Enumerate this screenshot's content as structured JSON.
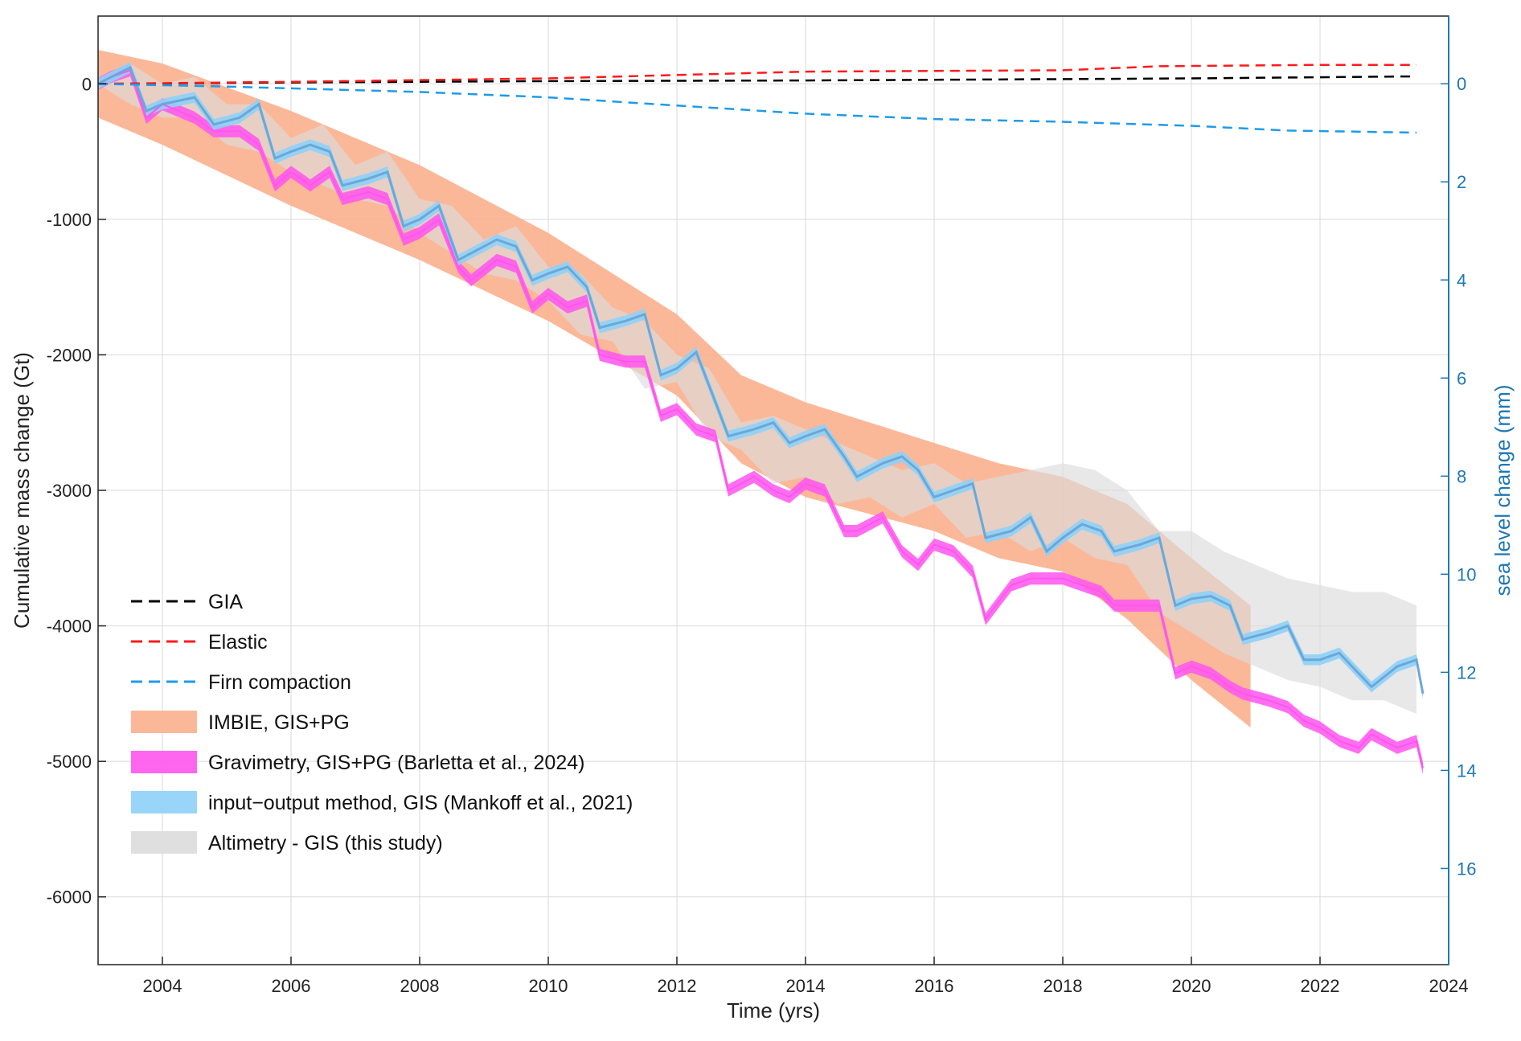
{
  "colors": {
    "gia": "#000000",
    "elastic": "#ff1a1a",
    "firn": "#1e9be8",
    "imbie": "#fbb08e",
    "gravimetry": "#ff55ee",
    "io_band": "#8ed0f8",
    "io_line": "#6aa8d8",
    "altimetry": "#dcdcdc",
    "right_axis": "#1f77b4"
  },
  "chart_data": {
    "type": "area",
    "title": "",
    "xlabel": "Time (yrs)",
    "ylabel": "Cumulative mass change (Gt)",
    "y2label": "sea level change (mm)",
    "xlim": [
      2003,
      2024
    ],
    "ylim": [
      -6500,
      500
    ],
    "y2lim": [
      -1.38,
      17.96
    ],
    "xticks": [
      2004,
      2006,
      2008,
      2010,
      2012,
      2014,
      2016,
      2018,
      2020,
      2022,
      2024
    ],
    "yticks": [
      0,
      -1000,
      -2000,
      -3000,
      -4000,
      -5000,
      -6000
    ],
    "y2ticks": [
      0,
      2,
      4,
      6,
      8,
      10,
      12,
      14,
      16
    ],
    "grid": true,
    "legend_position": "bottom-left",
    "legend": [
      {
        "label": "GIA",
        "style": "dashed",
        "color": "#000000"
      },
      {
        "label": "Elastic",
        "style": "dashed",
        "color": "#ff1a1a"
      },
      {
        "label": "Firn compaction",
        "style": "dashed",
        "color": "#1e9be8"
      },
      {
        "label": "IMBIE, GIS+PG",
        "style": "band",
        "color": "#fbb08e"
      },
      {
        "label": "Gravimetry, GIS+PG (Barletta et al., 2024)",
        "style": "band",
        "color": "#ff55ee"
      },
      {
        "label": "input−output method, GIS (Mankoff et al., 2021)",
        "style": "band",
        "color": "#8ed0f8"
      },
      {
        "label": "Altimetry - GIS (this study)",
        "style": "band",
        "color": "#dcdcdc"
      }
    ],
    "series": [
      {
        "name": "GIA",
        "kind": "line",
        "x": [
          2003,
          2006,
          2010,
          2014,
          2018,
          2020,
          2023.5
        ],
        "y": [
          0,
          10,
          20,
          25,
          35,
          40,
          55
        ]
      },
      {
        "name": "Elastic",
        "kind": "line",
        "x": [
          2003,
          2006,
          2010,
          2014,
          2018,
          2019.5,
          2022,
          2023.5
        ],
        "y": [
          0,
          15,
          40,
          90,
          100,
          130,
          140,
          140
        ]
      },
      {
        "name": "Firn compaction",
        "kind": "line",
        "x": [
          2003,
          2005,
          2008,
          2010,
          2012,
          2014,
          2016,
          2018,
          2020,
          2021.5,
          2023.5
        ],
        "y": [
          0,
          -20,
          -60,
          -100,
          -160,
          -220,
          -260,
          -280,
          -310,
          -345,
          -360
        ]
      },
      {
        "name": "IMBIE, GIS+PG",
        "kind": "band",
        "x": [
          2003,
          2004,
          2006,
          2008,
          2010,
          2012,
          2013,
          2014,
          2016,
          2017,
          2018,
          2019,
          2020,
          2020.92
        ],
        "upper": [
          250,
          150,
          -200,
          -600,
          -1100,
          -1700,
          -2150,
          -2350,
          -2650,
          -2800,
          -2900,
          -3100,
          -3500,
          -3850
        ],
        "lower": [
          -250,
          -450,
          -900,
          -1300,
          -1750,
          -2300,
          -2800,
          -3050,
          -3300,
          -3500,
          -3600,
          -3950,
          -4400,
          -4750
        ]
      },
      {
        "name": "Gravimetry, GIS+PG (Barletta et al., 2024)",
        "kind": "band_line",
        "x": [
          2003,
          2003.2,
          2003.5,
          2003.75,
          2004.0,
          2004.5,
          2004.8,
          2005.2,
          2005.5,
          2005.75,
          2006.0,
          2006.3,
          2006.6,
          2006.8,
          2007.2,
          2007.5,
          2007.75,
          2008.0,
          2008.3,
          2008.6,
          2008.8,
          2009.2,
          2009.5,
          2009.75,
          2010.0,
          2010.3,
          2010.6,
          2010.8,
          2011.2,
          2011.5,
          2011.75,
          2012.0,
          2012.3,
          2012.6,
          2012.8,
          2013.2,
          2013.5,
          2013.75,
          2014.0,
          2014.3,
          2014.6,
          2014.8,
          2015.2,
          2015.5,
          2015.75,
          2016.0,
          2016.3,
          2016.6,
          2016.8,
          2017.2,
          2017.5,
          2017.75,
          2018.0,
          2018.3,
          2018.6,
          2018.8,
          2019.2,
          2019.5,
          2019.75,
          2020.0,
          2020.3,
          2020.6,
          2020.8,
          2021.2,
          2021.5,
          2021.75,
          2022.0,
          2022.3,
          2022.6,
          2022.8,
          2023.2,
          2023.5,
          2023.6
        ],
        "y": [
          0,
          50,
          100,
          -250,
          -150,
          -250,
          -350,
          -350,
          -450,
          -750,
          -650,
          -750,
          -650,
          -850,
          -800,
          -850,
          -1150,
          -1100,
          -1000,
          -1350,
          -1450,
          -1300,
          -1350,
          -1650,
          -1550,
          -1650,
          -1600,
          -2000,
          -2050,
          -2050,
          -2450,
          -2400,
          -2550,
          -2600,
          -3000,
          -2900,
          -3000,
          -3050,
          -2950,
          -3000,
          -3300,
          -3300,
          -3200,
          -3450,
          -3550,
          -3400,
          -3450,
          -3600,
          -3950,
          -3700,
          -3650,
          -3650,
          -3650,
          -3700,
          -3750,
          -3850,
          -3850,
          -3850,
          -4350,
          -4300,
          -4350,
          -4450,
          -4500,
          -4550,
          -4600,
          -4700,
          -4750,
          -4850,
          -4900,
          -4800,
          -4900,
          -4850,
          -5050
        ],
        "band_half_width": 45
      },
      {
        "name": "input−output method, GIS (Mankoff et al., 2021)",
        "kind": "band_line",
        "x": [
          2003,
          2003.2,
          2003.5,
          2003.75,
          2004.0,
          2004.5,
          2004.8,
          2005.2,
          2005.5,
          2005.75,
          2006.0,
          2006.3,
          2006.6,
          2006.8,
          2007.2,
          2007.5,
          2007.75,
          2008.0,
          2008.3,
          2008.6,
          2008.8,
          2009.2,
          2009.5,
          2009.75,
          2010.0,
          2010.3,
          2010.6,
          2010.8,
          2011.2,
          2011.5,
          2011.75,
          2012.0,
          2012.3,
          2012.6,
          2012.8,
          2013.2,
          2013.5,
          2013.75,
          2014.0,
          2014.3,
          2014.6,
          2014.8,
          2015.2,
          2015.5,
          2015.75,
          2016.0,
          2016.3,
          2016.6,
          2016.8,
          2017.2,
          2017.5,
          2017.75,
          2018.0,
          2018.3,
          2018.6,
          2018.8,
          2019.2,
          2019.5,
          2019.75,
          2020.0,
          2020.3,
          2020.6,
          2020.8,
          2021.2,
          2021.5,
          2021.75,
          2022.0,
          2022.3,
          2022.6,
          2022.8,
          2023.2,
          2023.5,
          2023.6
        ],
        "y": [
          0,
          50,
          120,
          -200,
          -150,
          -100,
          -300,
          -250,
          -150,
          -550,
          -500,
          -450,
          -500,
          -750,
          -700,
          -650,
          -1050,
          -1000,
          -900,
          -1300,
          -1250,
          -1150,
          -1200,
          -1450,
          -1400,
          -1350,
          -1500,
          -1800,
          -1750,
          -1700,
          -2150,
          -2100,
          -1980,
          -2350,
          -2600,
          -2550,
          -2500,
          -2650,
          -2600,
          -2550,
          -2750,
          -2900,
          -2800,
          -2750,
          -2850,
          -3050,
          -3000,
          -2950,
          -3350,
          -3300,
          -3200,
          -3450,
          -3350,
          -3250,
          -3300,
          -3450,
          -3400,
          -3350,
          -3850,
          -3800,
          -3780,
          -3850,
          -4100,
          -4050,
          -4000,
          -4250,
          -4250,
          -4200,
          -4350,
          -4450,
          -4300,
          -4250,
          -4500
        ],
        "band_half_width": 40
      },
      {
        "name": "Altimetry - GIS (this study)",
        "kind": "band",
        "x": [
          2003,
          2003.5,
          2004,
          2004.5,
          2005,
          2005.5,
          2006,
          2006.5,
          2007,
          2007.5,
          2008,
          2008.5,
          2009,
          2009.5,
          2010,
          2010.5,
          2011,
          2011.5,
          2012,
          2012.5,
          2013,
          2013.5,
          2014,
          2014.5,
          2015,
          2015.5,
          2016,
          2016.5,
          2017,
          2017.5,
          2018,
          2018.5,
          2019,
          2019.5,
          2020,
          2020.5,
          2021,
          2021.5,
          2022,
          2022.5,
          2023,
          2023.5
        ],
        "upper": [
          0,
          150,
          0,
          50,
          -150,
          -150,
          -400,
          -300,
          -600,
          -500,
          -850,
          -900,
          -1150,
          -1050,
          -1350,
          -1400,
          -1650,
          -1750,
          -2000,
          -2100,
          -2500,
          -2450,
          -2550,
          -2650,
          -2750,
          -2850,
          -2800,
          -2950,
          -2900,
          -2850,
          -2800,
          -2850,
          -3000,
          -3300,
          -3300,
          -3450,
          -3550,
          -3650,
          -3700,
          -3750,
          -3750,
          -3850
        ],
        "lower": [
          0,
          -150,
          -250,
          -250,
          -450,
          -500,
          -650,
          -750,
          -850,
          -900,
          -1100,
          -1250,
          -1400,
          -1450,
          -1600,
          -1850,
          -1900,
          -2250,
          -2200,
          -2600,
          -2700,
          -2950,
          -2900,
          -3100,
          -3050,
          -3200,
          -3100,
          -3350,
          -3300,
          -3450,
          -3350,
          -3500,
          -3550,
          -3900,
          -4050,
          -4200,
          -4300,
          -4400,
          -4450,
          -4550,
          -4550,
          -4650
        ]
      }
    ]
  }
}
